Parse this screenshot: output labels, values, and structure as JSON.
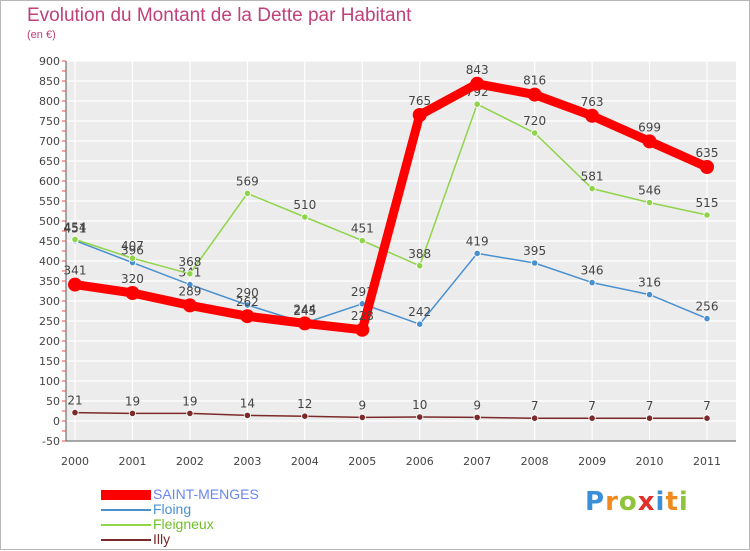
{
  "header": {
    "title": "Evolution du Montant de la Dette par Habitant",
    "subtitle": "(en €)"
  },
  "brand": {
    "letters": [
      "P",
      "r",
      "o",
      "x",
      "i",
      "t",
      "i"
    ],
    "colors": [
      "#3a8fd8",
      "#f08a1c",
      "#8fc33a",
      "#e0302a",
      "#3a8fd8",
      "#f08a1c",
      "#8fc33a"
    ]
  },
  "chart_data": {
    "type": "line",
    "title": "Evolution du Montant de la Dette par Habitant",
    "ylabel": "(en €)",
    "xlabel": "",
    "x": [
      "2000",
      "2001",
      "2002",
      "2003",
      "2004",
      "2005",
      "2006",
      "2007",
      "2008",
      "2009",
      "2010",
      "2011"
    ],
    "ylim": [
      -50,
      900
    ],
    "y_ticks": [
      -50,
      0,
      50,
      100,
      150,
      200,
      250,
      300,
      350,
      400,
      450,
      500,
      550,
      600,
      650,
      700,
      750,
      800,
      850,
      900
    ],
    "grid": true,
    "legend_position": "bottom-left",
    "series": [
      {
        "name": "SAINT-MENGES",
        "color": "#ff0000",
        "values": [
          341,
          320,
          289,
          262,
          244,
          228,
          765,
          843,
          816,
          763,
          699,
          635
        ]
      },
      {
        "name": "Floing",
        "color": "#4a90cf",
        "values": [
          451,
          396,
          341,
          290,
          245,
          293,
          242,
          419,
          395,
          346,
          316,
          256
        ]
      },
      {
        "name": "Fleigneux",
        "color": "#8fd44a",
        "values": [
          454,
          407,
          368,
          569,
          510,
          451,
          388,
          792,
          720,
          581,
          546,
          515
        ]
      },
      {
        "name": "Illy",
        "color": "#7a2a2a",
        "values": [
          21,
          19,
          19,
          14,
          12,
          9,
          10,
          9,
          7,
          7,
          7,
          7
        ]
      }
    ]
  }
}
